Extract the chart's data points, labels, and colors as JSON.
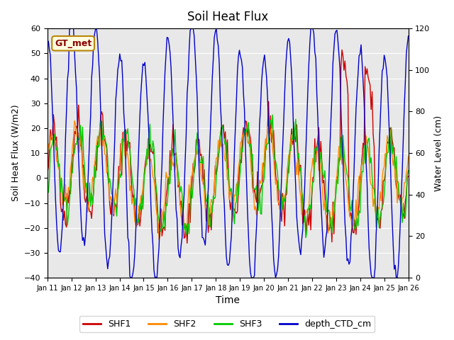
{
  "title": "Soil Heat Flux",
  "xlabel": "Time",
  "ylabel_left": "Soil Heat Flux (W/m2)",
  "ylabel_right": "Water Level (cm)",
  "ylim_left": [
    -40,
    60
  ],
  "ylim_right": [
    0,
    120
  ],
  "annotation": "GT_met",
  "legend_labels": [
    "SHF1",
    "SHF2",
    "SHF3",
    "depth_CTD_cm"
  ],
  "legend_colors": [
    "#cc0000",
    "#ff8800",
    "#00cc00",
    "#0000cc"
  ],
  "background_color": "#e8e8e8",
  "xtick_labels": [
    "Jan 11",
    "Jan 12",
    "Jan 13",
    "Jan 14",
    "Jan 15",
    "Jan 16",
    "Jan 17",
    "Jan 18",
    "Jan 19",
    "Jan 20",
    "Jan 21",
    "Jan 22",
    "Jan 23",
    "Jan 24",
    "Jan 25",
    "Jan 26"
  ],
  "n_points": 360
}
